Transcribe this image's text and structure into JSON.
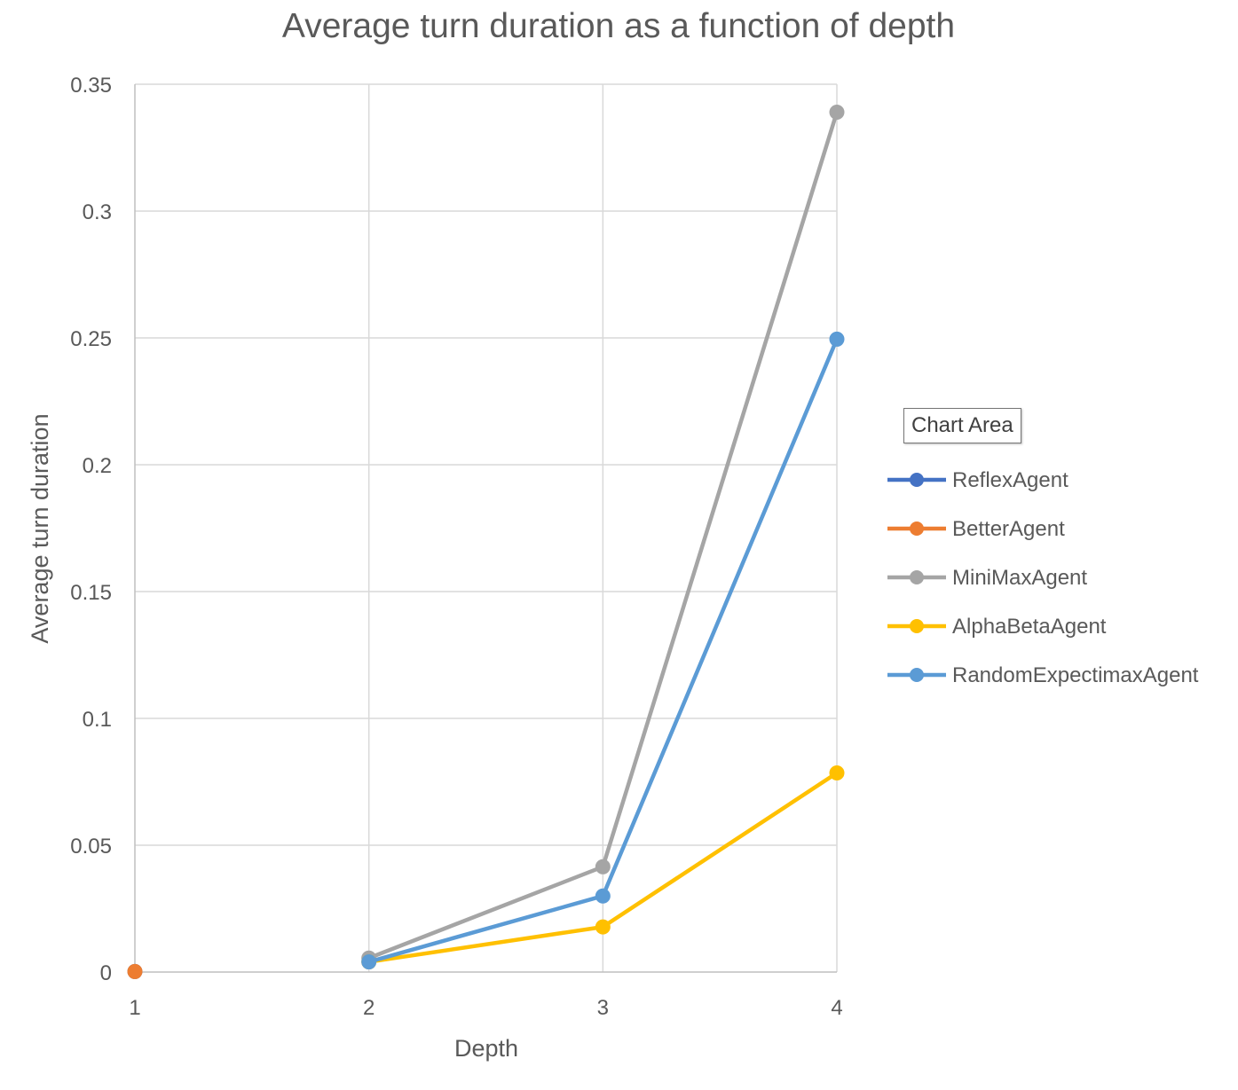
{
  "tooltip": {
    "text": "Chart Area"
  },
  "colors": {
    "gridline": "#d9d9d9",
    "axis_line": "#bfbfbf",
    "text": "#595959",
    "title": "#595959"
  },
  "chart_data": {
    "type": "line",
    "title": "Average turn duration as a function of depth",
    "xlabel": "Depth",
    "ylabel": "Average turn duration",
    "categories": [
      "1",
      "2",
      "3",
      "4"
    ],
    "ylim": [
      0,
      0.35
    ],
    "yticks": [
      "0",
      "0.05",
      "0.1",
      "0.15",
      "0.2",
      "0.25",
      "0.3",
      "0.35"
    ],
    "grid": true,
    "legend_position": "right",
    "series": [
      {
        "name": "ReflexAgent",
        "color": "#4472c4",
        "values": [
          0.0002,
          null,
          null,
          null
        ]
      },
      {
        "name": "BetterAgent",
        "color": "#ed7d31",
        "values": [
          0.0002,
          null,
          null,
          null
        ]
      },
      {
        "name": "MiniMaxAgent",
        "color": "#a5a5a5",
        "values": [
          null,
          0.0055,
          0.0415,
          0.339
        ]
      },
      {
        "name": "AlphaBetaAgent",
        "color": "#ffc000",
        "values": [
          null,
          0.004,
          0.0178,
          0.0785
        ]
      },
      {
        "name": "RandomExpectimaxAgent",
        "color": "#5b9bd5",
        "values": [
          null,
          0.004,
          0.03,
          0.2495
        ]
      }
    ]
  }
}
